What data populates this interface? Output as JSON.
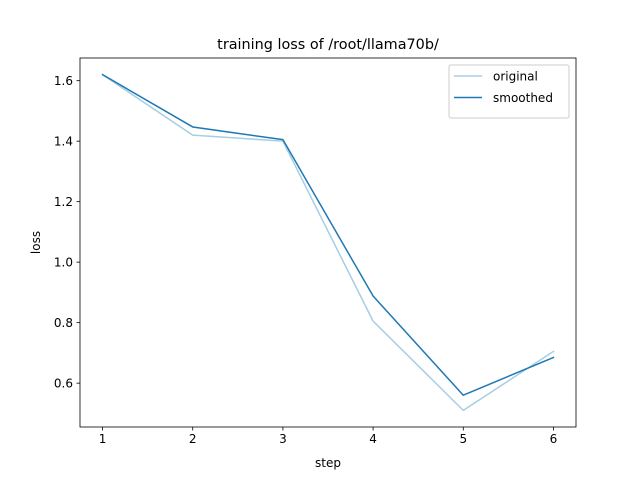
{
  "chart_data": {
    "type": "line",
    "title": "training loss of /root/llama70b/",
    "xlabel": "step",
    "ylabel": "loss",
    "x": [
      1,
      2,
      3,
      4,
      5,
      6
    ],
    "xlim": [
      0.75,
      6.25
    ],
    "ylim": [
      0.455,
      1.675
    ],
    "xticks": [
      1,
      2,
      3,
      4,
      5,
      6
    ],
    "yticks": [
      0.6,
      0.8,
      1.0,
      1.2,
      1.4,
      1.6
    ],
    "ytick_labels": [
      "0.6",
      "0.8",
      "1.0",
      "1.2",
      "1.4",
      "1.6"
    ],
    "grid": false,
    "legend_position": "top-right",
    "series": [
      {
        "name": "original",
        "color": "#a6cee3",
        "values": [
          1.62,
          1.42,
          1.4,
          0.805,
          0.51,
          0.705
        ]
      },
      {
        "name": "smoothed",
        "color": "#1f78b4",
        "values": [
          1.62,
          1.447,
          1.405,
          0.888,
          0.56,
          0.685
        ]
      }
    ]
  }
}
